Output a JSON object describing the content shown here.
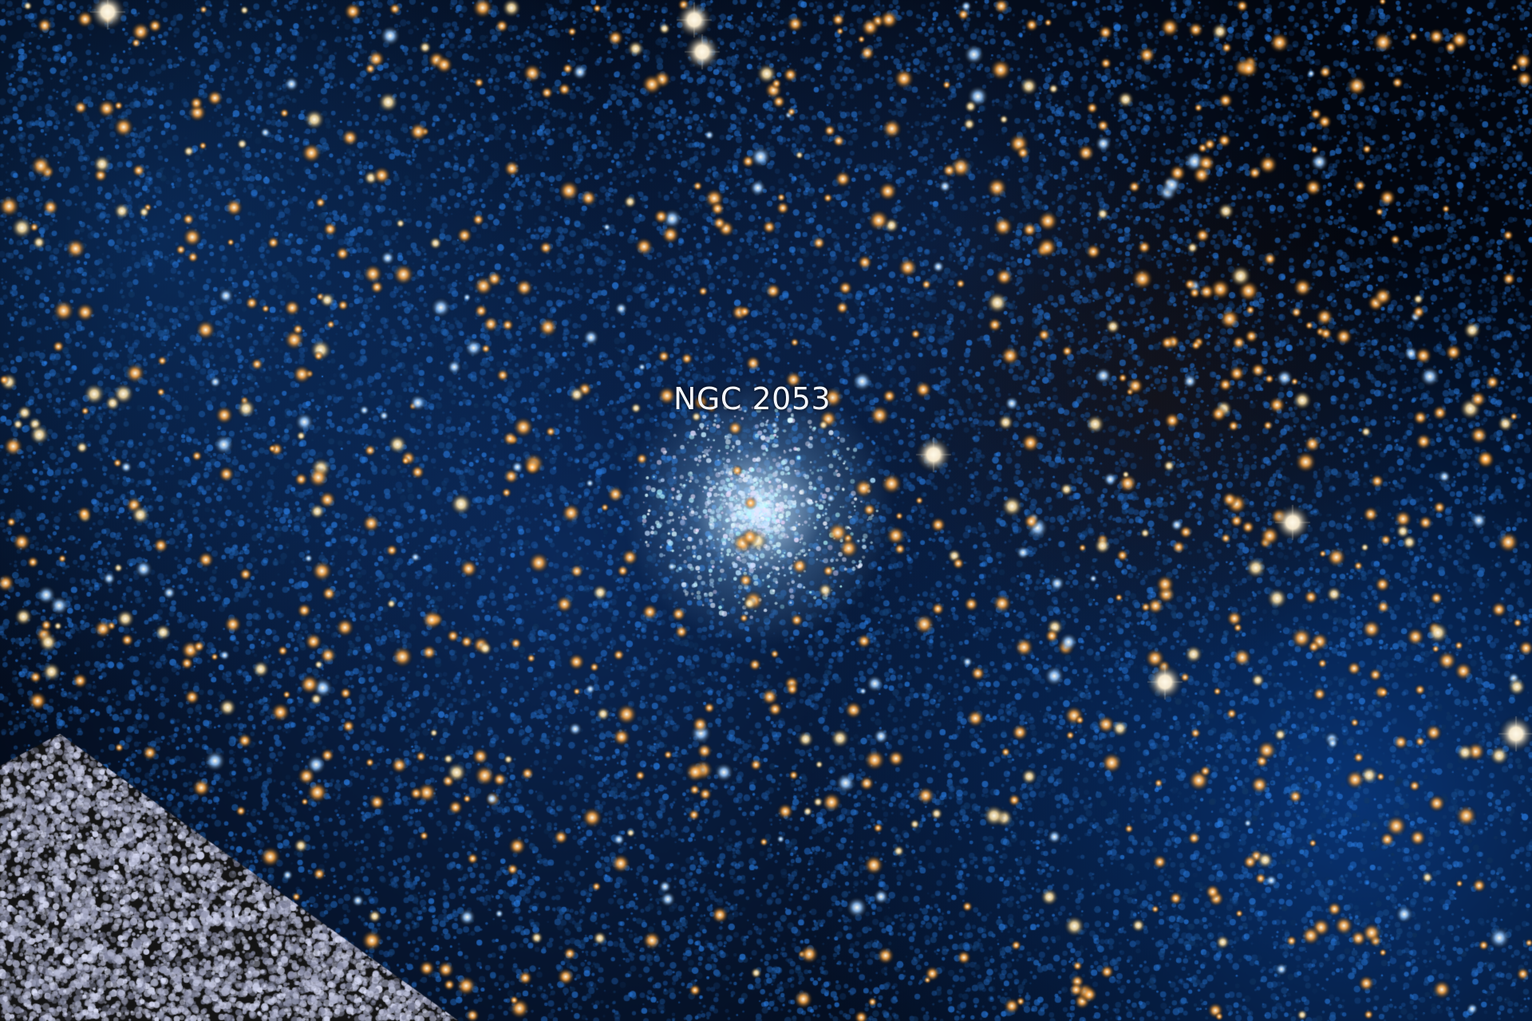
{
  "image": {
    "label": "NGC 2053",
    "colors": {
      "sky_deep": "#02060f",
      "nebula_blue": "#1f6fd6",
      "nebula_bright": "#5aa8ff",
      "cluster_core": "#d8eeff",
      "star_orange": "#ffb347",
      "star_white": "#fff6e0",
      "inset_light": "#c9cde6",
      "inset_dark": "#1a1a1a"
    }
  }
}
